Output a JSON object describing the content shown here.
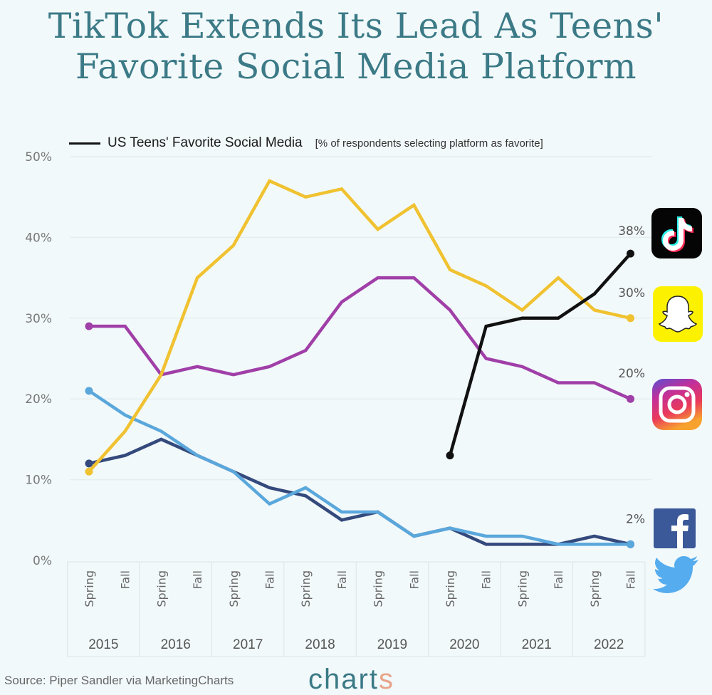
{
  "title": {
    "line1": "TikTok Extends Its Lead As Teens'",
    "line2": "Favorite Social Media Platform"
  },
  "legend": {
    "title": "US Teens' Favorite Social Media",
    "subtitle": "[% of respondents selecting platform as favorite]"
  },
  "source": "Source: Piper Sandler via MarketingCharts",
  "brand": {
    "text": "chart",
    "accent": "s"
  },
  "chart_data": {
    "type": "line",
    "title": "US Teens' Favorite Social Media",
    "subtitle": "[% of respondents selecting platform as favorite]",
    "xlabel": "",
    "ylabel": "",
    "ylim": [
      0,
      50
    ],
    "yticks": [
      0,
      10,
      20,
      30,
      40,
      50
    ],
    "ytick_labels": [
      "0%",
      "10%",
      "20%",
      "30%",
      "40%",
      "50%"
    ],
    "grid": true,
    "legend": "top-left",
    "years": [
      "2015",
      "2016",
      "2017",
      "2018",
      "2019",
      "2020",
      "2021",
      "2022"
    ],
    "seasons": [
      "Spring",
      "Fall"
    ],
    "x": [
      "Spring 2015",
      "Fall 2015",
      "Spring 2016",
      "Fall 2016",
      "Spring 2017",
      "Fall 2017",
      "Spring 2018",
      "Fall 2018",
      "Spring 2019",
      "Fall 2019",
      "Spring 2020",
      "Fall 2020",
      "Spring 2021",
      "Fall 2021",
      "Spring 2022",
      "Fall 2022"
    ],
    "series": [
      {
        "name": "Snapchat",
        "color": "#f0c230",
        "icon": "snapchat-icon",
        "end_label": "30%",
        "values": [
          11,
          16,
          23,
          35,
          39,
          47,
          45,
          46,
          41,
          44,
          36,
          34,
          31,
          35,
          31,
          30
        ]
      },
      {
        "name": "Instagram",
        "color": "#a03fa8",
        "icon": "instagram-icon",
        "end_label": "20%",
        "values": [
          29,
          29,
          23,
          24,
          23,
          24,
          26,
          32,
          35,
          35,
          31,
          25,
          24,
          22,
          22,
          20
        ]
      },
      {
        "name": "Facebook",
        "color": "#34497c",
        "icon": "facebook-icon",
        "end_label": "",
        "values": [
          12,
          13,
          15,
          13,
          11,
          9,
          8,
          5,
          6,
          3,
          4,
          2,
          2,
          2,
          3,
          2
        ]
      },
      {
        "name": "Twitter",
        "color": "#5aa7dc",
        "icon": "twitter-icon",
        "end_label": "2%",
        "values": [
          21,
          18,
          16,
          13,
          11,
          7,
          9,
          6,
          6,
          3,
          4,
          3,
          3,
          2,
          2,
          2
        ]
      },
      {
        "name": "TikTok",
        "color": "#111111",
        "icon": "tiktok-icon",
        "end_label": "38%",
        "values": [
          null,
          null,
          null,
          null,
          null,
          null,
          null,
          null,
          null,
          null,
          13,
          29,
          30,
          30,
          33,
          38
        ]
      }
    ]
  }
}
